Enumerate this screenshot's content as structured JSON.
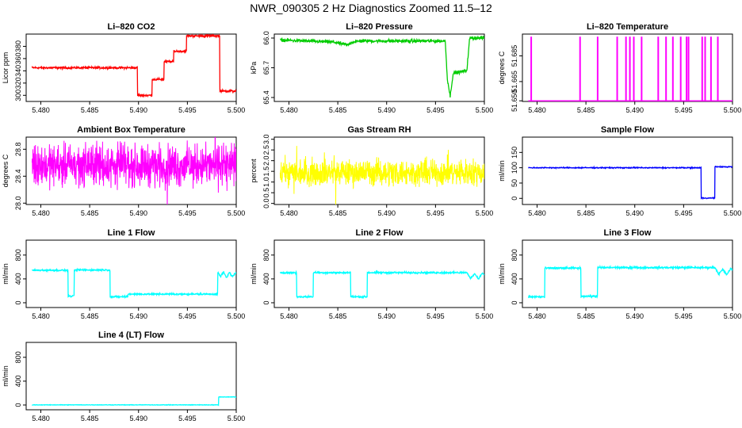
{
  "title": "NWR_090305  2 Hz Diagnostics Zoomed 11.5–12",
  "chart_data": [
    {
      "type": "line",
      "title": "Li–820 CO2",
      "ylabel": "Licor ppm",
      "color": "#ff0000",
      "xlim": [
        5.4785,
        5.5
      ],
      "ylim": [
        290,
        400
      ],
      "xticks": [
        5.48,
        5.485,
        5.49,
        5.495,
        5.5
      ],
      "xtick_labels": [
        "5.480",
        "5.485",
        "5.490",
        "5.495",
        "5.500"
      ],
      "yticks": [
        300,
        320,
        340,
        360,
        380
      ],
      "ytick_labels": [
        "300",
        "320",
        "340",
        "360",
        "380"
      ],
      "series": [
        {
          "x": [
            5.4791,
            5.4899,
            5.4899,
            5.4914,
            5.4914,
            5.4926,
            5.4926,
            5.4936,
            5.4936,
            5.4949,
            5.4949,
            5.4983,
            5.4983,
            5.5
          ],
          "y": [
            345,
            345,
            300,
            300,
            326,
            326,
            355,
            355,
            372,
            372,
            397,
            397,
            307,
            307
          ],
          "noise": 1.2,
          "kind": "step"
        }
      ]
    },
    {
      "type": "line",
      "title": "Li–820 Pressure",
      "ylabel": "kPa",
      "color": "#00cc00",
      "xlim": [
        5.4785,
        5.5
      ],
      "ylim": [
        65.36,
        66.04
      ],
      "xticks": [
        5.48,
        5.485,
        5.49,
        5.495,
        5.5
      ],
      "xtick_labels": [
        "5.480",
        "5.485",
        "5.490",
        "5.495",
        "5.500"
      ],
      "yticks": [
        65.4,
        65.7,
        66.0
      ],
      "ytick_labels": [
        "65.4",
        "65.7",
        "66.0"
      ],
      "series": [
        {
          "x": [
            5.4791,
            5.4845,
            5.486,
            5.4865,
            5.4875,
            5.496,
            5.4962,
            5.4965,
            5.4968,
            5.497,
            5.4982,
            5.4985,
            5.4988,
            5.5
          ],
          "y": [
            65.98,
            65.96,
            65.93,
            65.96,
            65.97,
            65.97,
            65.6,
            65.41,
            65.64,
            65.65,
            65.67,
            66.0,
            66.0,
            66.0
          ],
          "noise": 0.012,
          "kind": "line"
        }
      ]
    },
    {
      "type": "line",
      "title": "Li–820 Temperature",
      "ylabel": "degrees C",
      "color": "#ff00ff",
      "xlim": [
        5.4785,
        5.5
      ],
      "ylim": [
        51.6495,
        51.702
      ],
      "xticks": [
        5.48,
        5.485,
        5.49,
        5.495,
        5.5
      ],
      "xtick_labels": [
        "5.480",
        "5.485",
        "5.490",
        "5.495",
        "5.500"
      ],
      "yticks": [
        51.65,
        51.665,
        51.685
      ],
      "ytick_labels": [
        "51.650",
        "51.665",
        "51.685"
      ],
      "series": [
        {
          "baseline": 51.65,
          "spike_top": 51.7,
          "spikes": [
            5.4794,
            5.4844,
            5.4862,
            5.4882,
            5.4891,
            5.4895,
            5.4899,
            5.4907,
            5.4924,
            5.4932,
            5.4939,
            5.4947,
            5.4953,
            5.4955,
            5.4969,
            5.4972,
            5.4978,
            5.4985
          ],
          "kind": "spikes"
        }
      ]
    },
    {
      "type": "line",
      "title": "Ambient Box Temperature",
      "ylabel": "degrees C",
      "color": "#ff00ff",
      "xlim": [
        5.4785,
        5.5
      ],
      "ylim": [
        27.98,
        28.98
      ],
      "xticks": [
        5.48,
        5.485,
        5.49,
        5.495,
        5.5
      ],
      "xtick_labels": [
        "5.480",
        "5.485",
        "5.490",
        "5.495",
        "5.500"
      ],
      "yticks": [
        28.0,
        28.4,
        28.8
      ],
      "ytick_labels": [
        "28.0",
        "28.4",
        "28.8"
      ],
      "series": [
        {
          "x": [
            5.4791,
            5.5
          ],
          "y": [
            28.56,
            28.56
          ],
          "noise": 0.22,
          "kind": "noise"
        }
      ]
    },
    {
      "type": "line",
      "title": "Gas Stream RH",
      "ylabel": "percent",
      "color": "#ffff00",
      "xlim": [
        5.4785,
        5.5
      ],
      "ylim": [
        -0.05,
        3.1
      ],
      "xticks": [
        5.48,
        5.485,
        5.49,
        5.495,
        5.5
      ],
      "xtick_labels": [
        "5.480",
        "5.485",
        "5.490",
        "5.495",
        "5.500"
      ],
      "yticks": [
        0.0,
        0.5,
        1.0,
        1.5,
        2.0,
        2.5,
        3.0
      ],
      "ytick_labels": [
        "0.0",
        "0.5",
        "1.0",
        "1.5",
        "2.0",
        "2.5",
        "3.0"
      ],
      "series": [
        {
          "x": [
            5.4791,
            5.5
          ],
          "y": [
            1.45,
            1.45
          ],
          "noise": 0.45,
          "kind": "noise"
        }
      ]
    },
    {
      "type": "line",
      "title": "Sample Flow",
      "ylabel": "ml/min",
      "color": "#0000ff",
      "xlim": [
        5.4785,
        5.5
      ],
      "ylim": [
        -20,
        200
      ],
      "xticks": [
        5.48,
        5.485,
        5.49,
        5.495,
        5.5
      ],
      "xtick_labels": [
        "5.480",
        "5.485",
        "5.490",
        "5.495",
        "5.500"
      ],
      "yticks": [
        0,
        50,
        100,
        150
      ],
      "ytick_labels": [
        "0",
        "50",
        "100",
        "150"
      ],
      "series": [
        {
          "x": [
            5.4791,
            5.4968,
            5.4968,
            5.4982,
            5.4982,
            5.5
          ],
          "y": [
            100,
            100,
            1,
            1,
            103,
            103
          ],
          "noise": 1.2,
          "kind": "step"
        }
      ]
    },
    {
      "type": "line",
      "title": "Line 1 Flow",
      "ylabel": "ml/min",
      "color": "#00ffff",
      "xlim": [
        5.4785,
        5.5
      ],
      "ylim": [
        -80,
        1050
      ],
      "xticks": [
        5.48,
        5.485,
        5.49,
        5.495,
        5.5
      ],
      "xtick_labels": [
        "5.480",
        "5.485",
        "5.490",
        "5.495",
        "5.500"
      ],
      "yticks": [
        0,
        400,
        800
      ],
      "ytick_labels": [
        "0",
        "400",
        "800"
      ],
      "series": [
        {
          "x": [
            5.4791,
            5.4828,
            5.4828,
            5.4834,
            5.4834,
            5.4871,
            5.4871,
            5.4889,
            5.4889,
            5.4981,
            5.4981,
            5.4984,
            5.4987,
            5.499,
            5.4993,
            5.4996,
            5.5
          ],
          "y": [
            545,
            545,
            110,
            110,
            550,
            550,
            100,
            100,
            145,
            145,
            510,
            440,
            520,
            420,
            510,
            440,
            500
          ],
          "noise": 10,
          "kind": "step"
        }
      ]
    },
    {
      "type": "line",
      "title": "Line 2 Flow",
      "ylabel": "ml/min",
      "color": "#00ffff",
      "xlim": [
        5.4785,
        5.5
      ],
      "ylim": [
        -80,
        1050
      ],
      "xticks": [
        5.48,
        5.485,
        5.49,
        5.495,
        5.5
      ],
      "xtick_labels": [
        "5.480",
        "5.485",
        "5.490",
        "5.495",
        "5.500"
      ],
      "yticks": [
        0,
        400,
        800
      ],
      "ytick_labels": [
        "0",
        "400",
        "800"
      ],
      "series": [
        {
          "x": [
            5.4791,
            5.4808,
            5.4808,
            5.4825,
            5.4825,
            5.4863,
            5.4863,
            5.488,
            5.488,
            5.4982,
            5.4986,
            5.499,
            5.4994,
            5.4998,
            5.5
          ],
          "y": [
            505,
            505,
            100,
            100,
            505,
            505,
            100,
            100,
            505,
            505,
            410,
            490,
            400,
            500,
            460
          ],
          "noise": 10,
          "kind": "step"
        }
      ]
    },
    {
      "type": "line",
      "title": "Line 3 Flow",
      "ylabel": "ml/min",
      "color": "#00ffff",
      "xlim": [
        5.4785,
        5.5
      ],
      "ylim": [
        -80,
        1050
      ],
      "xticks": [
        5.48,
        5.485,
        5.49,
        5.495,
        5.5
      ],
      "xtick_labels": [
        "5.480",
        "5.485",
        "5.490",
        "5.495",
        "5.500"
      ],
      "yticks": [
        0,
        400,
        800
      ],
      "ytick_labels": [
        "0",
        "400",
        "800"
      ],
      "series": [
        {
          "x": [
            5.4791,
            5.4808,
            5.4808,
            5.4845,
            5.4845,
            5.4862,
            5.4862,
            5.4982,
            5.4986,
            5.499,
            5.4994,
            5.4998,
            5.5
          ],
          "y": [
            100,
            100,
            580,
            580,
            110,
            110,
            590,
            590,
            480,
            560,
            470,
            570,
            540
          ],
          "noise": 12,
          "kind": "step"
        }
      ]
    },
    {
      "type": "line",
      "title": "Line 4 (LT) Flow",
      "ylabel": "ml/min",
      "color": "#00ffff",
      "xlim": [
        5.4785,
        5.5
      ],
      "ylim": [
        -80,
        1050
      ],
      "xticks": [
        5.48,
        5.485,
        5.49,
        5.495,
        5.5
      ],
      "xtick_labels": [
        "5.480",
        "5.485",
        "5.490",
        "5.495",
        "5.500"
      ],
      "yticks": [
        0,
        400,
        800
      ],
      "ytick_labels": [
        "0",
        "400",
        "800"
      ],
      "series": [
        {
          "x": [
            5.4791,
            5.4982,
            5.4982,
            5.5
          ],
          "y": [
            2,
            2,
            135,
            135
          ],
          "noise": 3,
          "kind": "step"
        }
      ]
    }
  ]
}
